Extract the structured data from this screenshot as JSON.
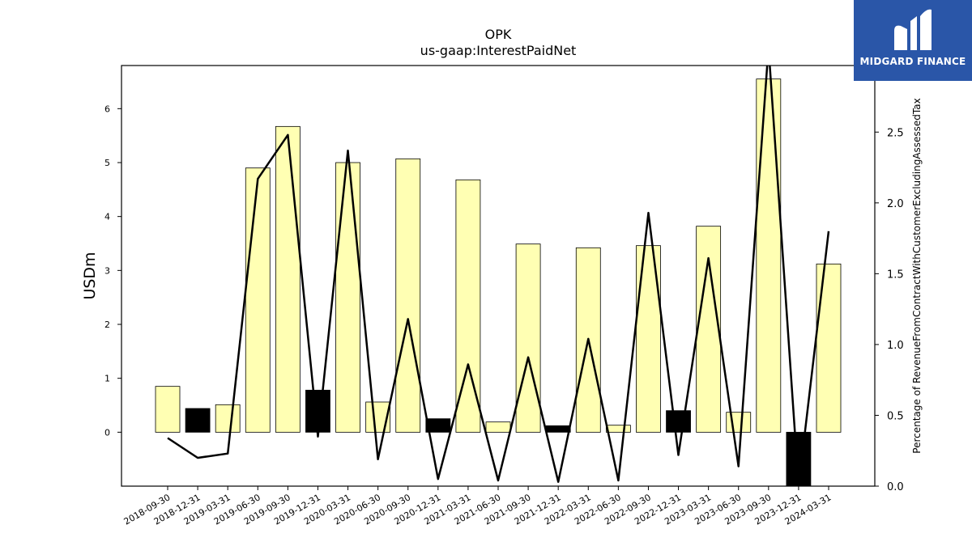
{
  "chart_data": {
    "type": "bar",
    "title": "OPK",
    "subtitle": "us-gaap:InterestPaidNet",
    "ylabel": "USDm",
    "y2label": "Percentage of RevenueFromContractWithCustomerExcludingAssessedTax",
    "categories": [
      "2018-09-30",
      "2018-12-31",
      "2019-03-31",
      "2019-06-30",
      "2019-09-30",
      "2019-12-31",
      "2020-03-31",
      "2020-06-30",
      "2020-09-30",
      "2020-12-31",
      "2021-03-31",
      "2021-06-30",
      "2021-09-30",
      "2021-12-31",
      "2022-03-31",
      "2022-06-30",
      "2022-09-30",
      "2022-12-31",
      "2023-03-31",
      "2023-06-30",
      "2023-09-30",
      "2023-12-31",
      "2024-03-31"
    ],
    "series": [
      {
        "type": "bar",
        "values": [
          0.85,
          0.44,
          0.51,
          4.9,
          5.67,
          0.78,
          5.0,
          0.56,
          5.07,
          0.25,
          4.68,
          0.19,
          3.49,
          0.12,
          3.42,
          0.13,
          3.46,
          0.4,
          3.82,
          0.37,
          6.55,
          -1.0,
          3.12
        ],
        "colors": [
          "#ffffb3",
          "#000000",
          "#ffffb3",
          "#ffffb3",
          "#ffffb3",
          "#000000",
          "#ffffb3",
          "#ffffb3",
          "#ffffb3",
          "#000000",
          "#ffffb3",
          "#ffffb3",
          "#ffffb3",
          "#000000",
          "#ffffb3",
          "#ffffb3",
          "#ffffb3",
          "#000000",
          "#ffffb3",
          "#ffffb3",
          "#ffffb3",
          "#000000",
          "#ffffb3"
        ]
      },
      {
        "type": "line",
        "axis": "right",
        "color": "#000000",
        "values": [
          0.34,
          0.2,
          0.23,
          2.17,
          2.48,
          0.35,
          2.37,
          0.19,
          1.18,
          0.05,
          0.86,
          0.04,
          0.91,
          0.03,
          1.04,
          0.04,
          1.93,
          0.22,
          1.61,
          0.14,
          3.1,
          0.0,
          1.8
        ]
      }
    ],
    "ylim": [
      -1.0,
      6.8
    ],
    "yticks": [
      0,
      1,
      2,
      3,
      4,
      5,
      6
    ],
    "y2lim": [
      0.0,
      2.97
    ],
    "y2ticks": [
      "0.0",
      "0.5",
      "1.0",
      "1.5",
      "2.0",
      "2.5"
    ],
    "grid": false,
    "legend": "none"
  },
  "logo": {
    "text": "MIDGARD FINANCE"
  }
}
